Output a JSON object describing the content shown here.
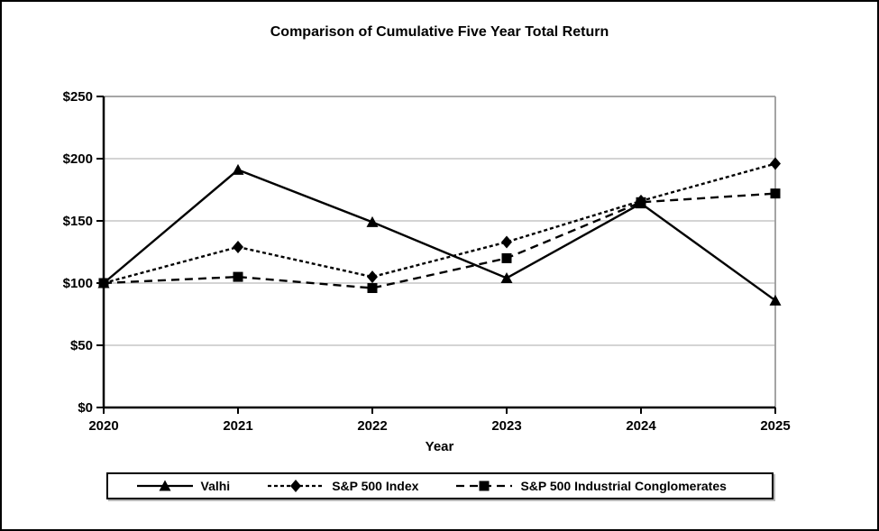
{
  "chart_data": {
    "type": "line",
    "title": "Comparison of Cumulative Five Year Total Return",
    "xlabel": "Year",
    "ylabel": "",
    "categories": [
      "2020",
      "2021",
      "2022",
      "2023",
      "2024",
      "2025"
    ],
    "series": [
      {
        "name": "Valhi",
        "marker": "triangle",
        "dash": "solid",
        "values": [
          100,
          191,
          149,
          104,
          164,
          86
        ]
      },
      {
        "name": "S&P 500 Index",
        "marker": "diamond",
        "dash": "short-dash",
        "values": [
          100,
          129,
          105,
          133,
          166,
          196
        ]
      },
      {
        "name": "S&P 500 Industrial Conglomerates",
        "marker": "square",
        "dash": "long-dash",
        "values": [
          100,
          105,
          96,
          120,
          165,
          172
        ]
      }
    ],
    "ylim": [
      0,
      250
    ],
    "yticks": [
      0,
      50,
      100,
      150,
      200,
      250
    ],
    "ytick_labels": [
      "$0",
      "$50",
      "$100",
      "$150",
      "$200",
      "$250"
    ],
    "grid": true,
    "legend_position": "bottom"
  },
  "colors": {
    "series": "#000000",
    "grid": "#c6c6c6",
    "plot_border": "#9a9a9a",
    "axis": "#000000",
    "background": "#ffffff",
    "frame_border": "#000000"
  }
}
